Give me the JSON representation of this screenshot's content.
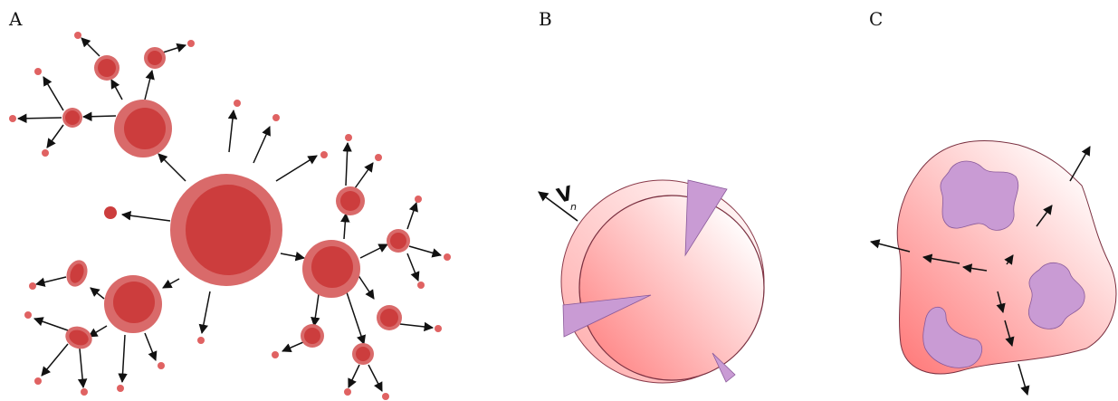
{
  "panels": {
    "a": {
      "label": "A",
      "description_free": true
    },
    "b": {
      "label": "B",
      "velocity_symbol": "V",
      "velocity_subscript": "n"
    },
    "c": {
      "label": "C"
    }
  },
  "colors": {
    "cell_outer": "#d96a6a",
    "cell_inner": "#cc3d3d",
    "arrow": "#111111",
    "sphere_fill_start": "#ff8f8f",
    "sphere_fill_end": "#ffffff",
    "inclusion": "#c99bd4",
    "outline": "#8a3a4a"
  }
}
